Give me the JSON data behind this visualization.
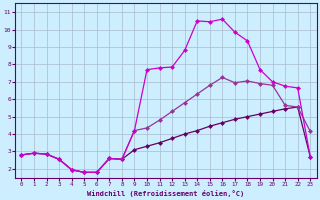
{
  "xlabel": "Windchill (Refroidissement éolien,°C)",
  "bg_color": "#cceeff",
  "grid_color": "#aabbcc",
  "line_color_top": "#cc00cc",
  "line_color_mid": "#993399",
  "line_color_bot": "#660066",
  "xlim": [
    -0.5,
    23.5
  ],
  "ylim": [
    1.5,
    11.5
  ],
  "xticks": [
    0,
    1,
    2,
    3,
    4,
    5,
    6,
    7,
    8,
    9,
    10,
    11,
    12,
    13,
    14,
    15,
    16,
    17,
    18,
    19,
    20,
    21,
    22,
    23
  ],
  "yticks": [
    2,
    3,
    4,
    5,
    6,
    7,
    8,
    9,
    10,
    11
  ],
  "line_top_x": [
    0,
    1,
    2,
    3,
    4,
    5,
    6,
    7,
    8,
    9,
    10,
    11,
    12,
    13,
    14,
    15,
    16,
    17,
    18,
    19,
    20,
    21,
    22,
    23
  ],
  "line_top_y": [
    2.8,
    2.9,
    2.85,
    2.55,
    1.95,
    1.8,
    1.8,
    2.6,
    2.55,
    4.2,
    7.7,
    7.8,
    7.85,
    8.8,
    10.5,
    10.45,
    10.6,
    9.85,
    9.35,
    7.7,
    7.0,
    6.75,
    6.65,
    2.7
  ],
  "line_mid_x": [
    0,
    1,
    2,
    3,
    4,
    5,
    6,
    7,
    8,
    9,
    10,
    11,
    12,
    13,
    14,
    15,
    16,
    17,
    18,
    19,
    20,
    21,
    22,
    23
  ],
  "line_mid_y": [
    2.8,
    2.9,
    2.85,
    2.55,
    1.95,
    1.8,
    1.8,
    2.6,
    2.55,
    4.2,
    4.35,
    4.8,
    5.3,
    5.8,
    6.3,
    6.8,
    7.25,
    6.95,
    7.05,
    6.9,
    6.8,
    5.65,
    5.55,
    4.15
  ],
  "line_bot_x": [
    0,
    1,
    2,
    3,
    4,
    5,
    6,
    7,
    8,
    9,
    10,
    11,
    12,
    13,
    14,
    15,
    16,
    17,
    18,
    19,
    20,
    21,
    22,
    23
  ],
  "line_bot_y": [
    2.8,
    2.9,
    2.85,
    2.55,
    1.95,
    1.8,
    1.8,
    2.6,
    2.55,
    3.1,
    3.3,
    3.5,
    3.75,
    4.0,
    4.2,
    4.45,
    4.65,
    4.85,
    5.0,
    5.15,
    5.3,
    5.45,
    5.55,
    2.7
  ],
  "marker_size": 2.5,
  "line_width": 0.9
}
